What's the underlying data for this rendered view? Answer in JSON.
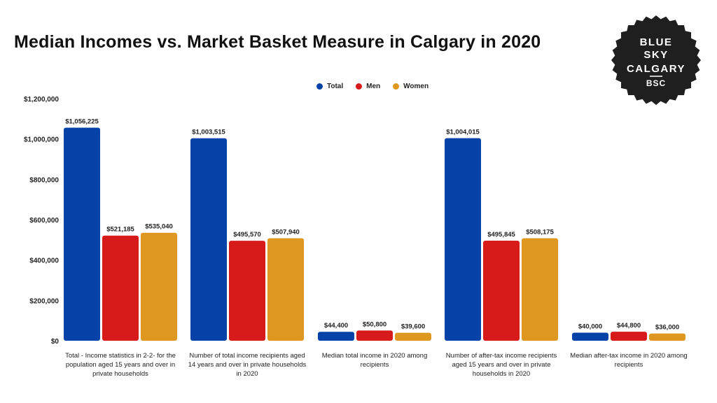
{
  "title": "Median Incomes vs. Market Basket Measure in Calgary in 2020",
  "logo": {
    "line1": "BLUE",
    "line2": "SKY",
    "line3": "CALGARY",
    "line4": "BSC"
  },
  "colors": {
    "total": "#0542a8",
    "men": "#d71a1a",
    "women": "#de9820",
    "logo_bg": "#1f1f1f"
  },
  "chart_data": {
    "type": "bar",
    "title": "Median Incomes vs. Market Basket Measure in Calgary in 2020",
    "categories": [
      "Total - Income statistics in 2-2- for the population aged 15 years and over in private households",
      "Number of total income recipients aged 14 years and over in private households in 2020",
      "Median total income in 2020 among recipients",
      "Number of after-tax income recipients aged 15 years and over in private households in 2020",
      "Median after-tax income in 2020 among recipients"
    ],
    "series": [
      {
        "name": "Total",
        "values": [
          1056225,
          1003515,
          44400,
          1004015,
          40000
        ],
        "labels": [
          "$1,056,225",
          "$1,003,515",
          "$44,400",
          "$1,004,015",
          "$40,000"
        ]
      },
      {
        "name": "Men",
        "values": [
          521185,
          495570,
          50800,
          495845,
          44800
        ],
        "labels": [
          "$521,185",
          "$495,570",
          "$50,800",
          "$495,845",
          "$44,800"
        ]
      },
      {
        "name": "Women",
        "values": [
          535040,
          507940,
          39600,
          508175,
          36000
        ],
        "labels": [
          "$535,040",
          "$507,940",
          "$39,600",
          "$508,175",
          "$36,000"
        ]
      }
    ],
    "yticks": [
      "$0",
      "$200,000",
      "$400,000",
      "$600,000",
      "$800,000",
      "$1,000,000",
      "$1,200,000"
    ],
    "ylim": [
      0,
      1200000
    ],
    "grid": false,
    "legend": "top-center"
  }
}
